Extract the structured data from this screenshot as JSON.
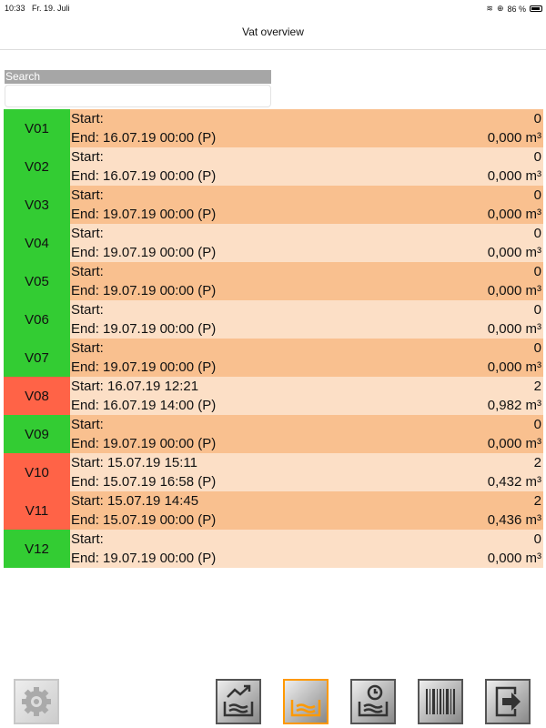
{
  "status_bar": {
    "time": "10:33",
    "date": "Fr. 19. Juli",
    "battery": "86 %",
    "battery_level": 86
  },
  "header": {
    "title": "Vat overview"
  },
  "search": {
    "label": "Search",
    "value": "",
    "placeholder": ""
  },
  "colors": {
    "ok": "#33CC33",
    "alert": "#FF6347",
    "row_dark": "#F9C08F",
    "row_light": "#FCDFC6",
    "active": "#FF9900"
  },
  "vats": [
    {
      "id": "V01",
      "status": "ok",
      "start": "Start:",
      "end": "End: 16.07.19 00:00 (P)",
      "count": "0",
      "volume": "0,000 m³"
    },
    {
      "id": "V02",
      "status": "ok",
      "start": "Start:",
      "end": "End: 16.07.19 00:00 (P)",
      "count": "0",
      "volume": "0,000 m³"
    },
    {
      "id": "V03",
      "status": "ok",
      "start": "Start:",
      "end": "End: 19.07.19 00:00 (P)",
      "count": "0",
      "volume": "0,000 m³"
    },
    {
      "id": "V04",
      "status": "ok",
      "start": "Start:",
      "end": "End: 19.07.19 00:00 (P)",
      "count": "0",
      "volume": "0,000 m³"
    },
    {
      "id": "V05",
      "status": "ok",
      "start": "Start:",
      "end": "End: 19.07.19 00:00 (P)",
      "count": "0",
      "volume": "0,000 m³"
    },
    {
      "id": "V06",
      "status": "ok",
      "start": "Start:",
      "end": "End: 19.07.19 00:00 (P)",
      "count": "0",
      "volume": "0,000 m³"
    },
    {
      "id": "V07",
      "status": "ok",
      "start": "Start:",
      "end": "End: 19.07.19 00:00 (P)",
      "count": "0",
      "volume": "0,000 m³"
    },
    {
      "id": "V08",
      "status": "alert",
      "start": "Start: 16.07.19 12:21",
      "end": "End: 16.07.19 14:00 (P)",
      "count": "2",
      "volume": "0,982 m³"
    },
    {
      "id": "V09",
      "status": "ok",
      "start": "Start:",
      "end": "End: 19.07.19 00:00 (P)",
      "count": "0",
      "volume": "0,000 m³"
    },
    {
      "id": "V10",
      "status": "alert",
      "start": "Start: 15.07.19 15:11",
      "end": "End: 15.07.19 16:58 (P)",
      "count": "2",
      "volume": "0,432 m³"
    },
    {
      "id": "V11",
      "status": "alert",
      "start": "Start: 15.07.19 14:45",
      "end": "End: 15.07.19 00:00 (P)",
      "count": "2",
      "volume": "0,436 m³"
    },
    {
      "id": "V12",
      "status": "ok",
      "start": "Start:",
      "end": "End: 19.07.19 00:00 (P)",
      "count": "0",
      "volume": "0,000 m³"
    }
  ],
  "toolbar": [
    {
      "icon": "gear-icon",
      "state": "disabled"
    },
    {
      "icon": "vat-trend-icon",
      "state": "normal"
    },
    {
      "icon": "vat-overview-icon",
      "state": "active"
    },
    {
      "icon": "vat-history-icon",
      "state": "normal"
    },
    {
      "icon": "barcode-icon",
      "state": "normal"
    },
    {
      "icon": "logout-icon",
      "state": "normal"
    }
  ]
}
